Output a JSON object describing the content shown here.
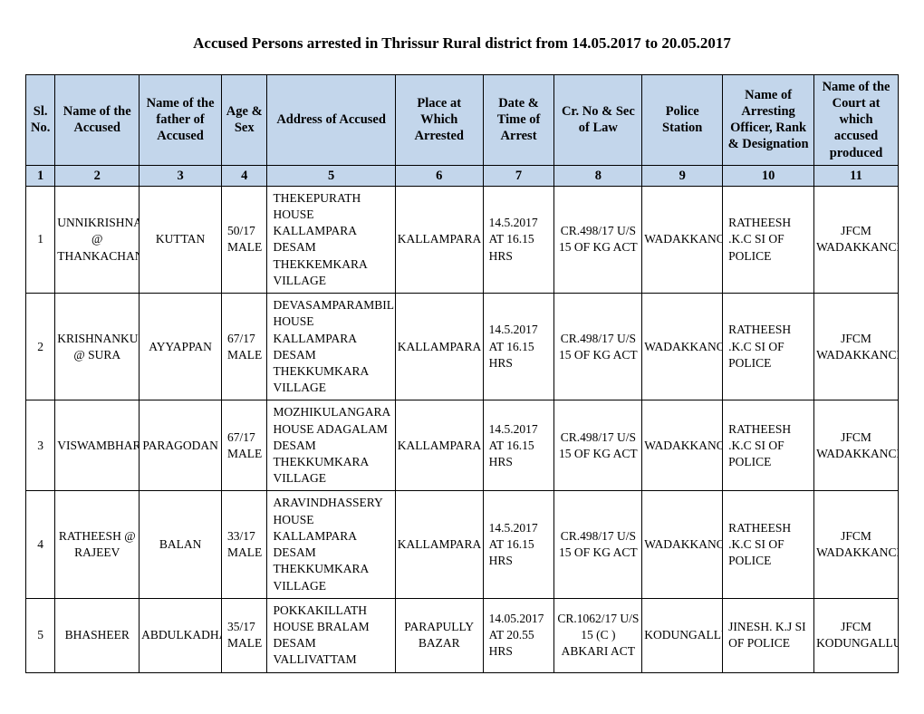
{
  "title": "Accused Persons arrested in   Thrissur  Rural   district from   14.05.2017 to 20.05.2017",
  "headers": {
    "c1": "Sl. No.",
    "c2": "Name of the Accused",
    "c3": "Name of the father of Accused",
    "c4": "Age & Sex",
    "c5": "Address of Accused",
    "c6": "Place at Which Arrested",
    "c7": "Date & Time of Arrest",
    "c8": "Cr. No & Sec of Law",
    "c9": "Police Station",
    "c10": "Name of Arresting Officer, Rank & Designation",
    "c11": "Name of the Court at which accused produced"
  },
  "colnums": {
    "c1": "1",
    "c2": "2",
    "c3": "3",
    "c4": "4",
    "c5": "5",
    "c6": "6",
    "c7": "7",
    "c8": "8",
    "c9": "9",
    "c10": "10",
    "c11": "11"
  },
  "rows": [
    {
      "sl": "1",
      "accused": "UNNIKRISHNAN @ THANKACHAN",
      "father": "KUTTAN",
      "age": "50/17 MALE",
      "addr": "THEKEPURATH HOUSE KALLAMPARA DESAM THEKKEMKARA VILLAGE",
      "place": "KALLAMPARA",
      "datetime": "14.5.2017 AT 16.15 HRS",
      "cr": "CR.498/17 U/S 15 OF KG ACT",
      "ps": "WADAKKANCHERY",
      "officer": "RATHEESH .K.C          SI OF POLICE",
      "court": "JFCM WADAKKANCHERY"
    },
    {
      "sl": "2",
      "accused": "KRISHNANKUMAR @ SURA",
      "father": "AYYAPPAN",
      "age": "67/17 MALE",
      "addr": "DEVASAMPARAMBIL HOUSE KALLAMPARA DESAM THEKKUMKARA VILLAGE",
      "place": "KALLAMPARA",
      "datetime": "14.5.2017 AT 16.15 HRS",
      "cr": "CR.498/17 U/S 15 OF KG ACT",
      "ps": "WADAKKANCHERY",
      "officer": "RATHEESH .K.C          SI OF POLICE",
      "court": "JFCM WADAKKANCHERY"
    },
    {
      "sl": "3",
      "accused": "VISWAMBHARAN",
      "father": "PARAGODAN",
      "age": "67/17 MALE",
      "addr": "MOZHIKULANGARA HOUSE ADAGALAM DESAM THEKKUMKARA VILLAGE",
      "place": "KALLAMPARA",
      "datetime": "14.5.2017 AT 16.15 HRS",
      "cr": "CR.498/17 U/S 15 OF KG ACT",
      "ps": "WADAKKANCHERY",
      "officer": "RATHEESH .K.C          SI OF POLICE",
      "court": "JFCM WADAKKANCHERY"
    },
    {
      "sl": "4",
      "accused": "RATHEESH @ RAJEEV",
      "father": "BALAN",
      "age": "33/17 MALE",
      "addr": "ARAVINDHASSERY HOUSE KALLAMPARA DESAM THEKKUMKARA VILLAGE",
      "place": "KALLAMPARA",
      "datetime": "14.5.2017 AT 16.15 HRS",
      "cr": "CR.498/17 U/S 15 OF KG ACT",
      "ps": "WADAKKANCHERY",
      "officer": "RATHEESH .K.C          SI OF POLICE",
      "court": "JFCM WADAKKANCHERY"
    },
    {
      "sl": "5",
      "accused": "BHASHEER",
      "father": "ABDULKADHAR",
      "age": "35/17 MALE",
      "addr": "POKKAKILLATH HOUSE BRALAM DESAM VALLIVATTAM",
      "place": "PARAPULLY BAZAR",
      "datetime": "14.05.2017 AT 20.55 HRS",
      "cr": "CR.1062/17 U/S 15 (C ) ABKARI ACT",
      "ps": "KODUNGALLUR",
      "officer": "JINESH. K.J SI OF POLICE",
      "court": "JFCM KODUNGALLUR"
    }
  ]
}
